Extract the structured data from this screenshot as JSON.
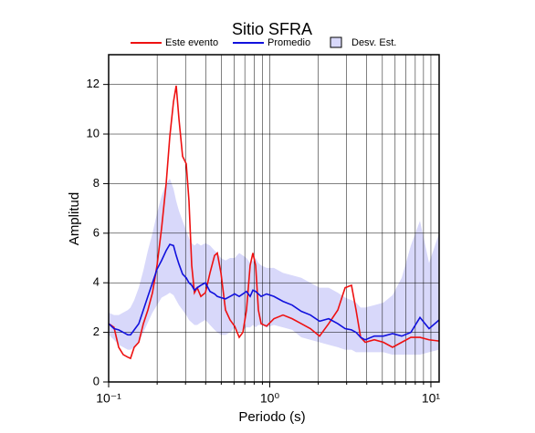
{
  "chart_data": {
    "type": "line",
    "title": "Sitio SFRA",
    "xlabel": "Periodo (s)",
    "ylabel": "Amplitud",
    "xscale": "log",
    "xlim": [
      0.1,
      11.25
    ],
    "ylim": [
      0,
      13.2
    ],
    "xticks": [
      {
        "value": 0.1,
        "label": "10⁻¹"
      },
      {
        "value": 1,
        "label": "10⁰"
      },
      {
        "value": 10,
        "label": "10¹"
      }
    ],
    "xminorticks": [
      0.2,
      0.3,
      0.4,
      0.5,
      0.6,
      0.7,
      0.8,
      0.9,
      2,
      3,
      4,
      5,
      6,
      7,
      8,
      9
    ],
    "yticks": [
      0,
      2,
      4,
      6,
      8,
      10,
      12
    ],
    "grid": true,
    "x": [
      0.1,
      0.108,
      0.1154,
      0.1232,
      0.1315,
      0.1367,
      0.1441,
      0.1538,
      0.1642,
      0.1752,
      0.1871,
      0.1997,
      0.2131,
      0.2275,
      0.2397,
      0.2526,
      0.2626,
      0.2732,
      0.2877,
      0.3031,
      0.3152,
      0.3278,
      0.3409,
      0.3545,
      0.3735,
      0.3988,
      0.4257,
      0.4544,
      0.4725,
      0.4977,
      0.5313,
      0.5671,
      0.6053,
      0.6462,
      0.6807,
      0.7171,
      0.7554,
      0.7858,
      0.8173,
      0.85,
      0.8839,
      0.9554,
      1.0605,
      1.2083,
      1.3768,
      1.5688,
      1.7875,
      2.0367,
      2.3207,
      2.6443,
      2.9349,
      3.2152,
      3.4318,
      3.663,
      3.9097,
      4.4548,
      5.0758,
      5.7834,
      6.5897,
      7.5085,
      8.555,
      9.7432,
      11.25
    ],
    "series": [
      {
        "name": "Este evento",
        "color": "#ee1111",
        "values": [
          2.35,
          2.2,
          1.4,
          1.1,
          1.0,
          0.95,
          1.4,
          1.6,
          2.35,
          2.9,
          3.6,
          4.7,
          6.2,
          8.0,
          9.9,
          11.3,
          11.95,
          10.6,
          9.1,
          8.8,
          7.3,
          4.7,
          3.6,
          3.8,
          3.45,
          3.6,
          4.4,
          5.1,
          5.2,
          4.4,
          2.9,
          2.5,
          2.25,
          1.8,
          2.0,
          2.9,
          4.7,
          5.2,
          4.7,
          2.9,
          2.35,
          2.25,
          2.55,
          2.7,
          2.55,
          2.35,
          2.15,
          1.85,
          2.35,
          2.9,
          3.8,
          3.9,
          2.9,
          1.8,
          1.6,
          1.7,
          1.6,
          1.4,
          1.6,
          1.8,
          1.8,
          1.7,
          1.65
        ]
      },
      {
        "name": "Promedio",
        "color": "#1111dd",
        "values": [
          2.35,
          2.15,
          2.1,
          2.0,
          1.9,
          1.9,
          2.1,
          2.35,
          2.9,
          3.45,
          4.0,
          4.55,
          4.9,
          5.3,
          5.55,
          5.5,
          5.1,
          4.75,
          4.35,
          4.2,
          4.0,
          3.9,
          3.7,
          3.8,
          3.9,
          4.0,
          3.65,
          3.55,
          3.45,
          3.4,
          3.35,
          3.45,
          3.55,
          3.45,
          3.55,
          3.65,
          3.45,
          3.7,
          3.65,
          3.55,
          3.45,
          3.55,
          3.45,
          3.25,
          3.1,
          2.85,
          2.7,
          2.45,
          2.55,
          2.35,
          2.15,
          2.1,
          2.0,
          1.8,
          1.7,
          1.85,
          1.85,
          1.95,
          1.85,
          2.0,
          2.6,
          2.15,
          2.5
        ]
      },
      {
        "name": "Desv. Est.",
        "color": "#d8d8fa",
        "upper": [
          2.8,
          2.7,
          2.7,
          2.8,
          2.9,
          3.0,
          3.3,
          3.8,
          4.5,
          5.3,
          6.0,
          6.8,
          7.5,
          8.0,
          8.2,
          7.8,
          7.3,
          6.9,
          6.5,
          6.1,
          5.8,
          5.6,
          5.5,
          5.6,
          5.5,
          5.6,
          5.5,
          5.3,
          5.2,
          5.0,
          4.9,
          5.0,
          5.0,
          5.2,
          5.1,
          5.0,
          4.8,
          4.9,
          5.0,
          4.8,
          4.7,
          4.6,
          4.6,
          4.4,
          4.3,
          4.2,
          4.0,
          3.8,
          3.8,
          3.6,
          3.4,
          3.3,
          3.2,
          3.0,
          3.0,
          3.1,
          3.2,
          3.5,
          4.2,
          5.5,
          6.5,
          4.8,
          6.0
        ],
        "lower": [
          1.9,
          1.7,
          1.5,
          1.4,
          1.3,
          1.3,
          1.4,
          1.6,
          2.0,
          2.4,
          2.8,
          3.1,
          3.4,
          3.5,
          3.6,
          3.5,
          3.3,
          3.1,
          2.9,
          2.7,
          2.5,
          2.4,
          2.3,
          2.3,
          2.4,
          2.5,
          2.3,
          2.1,
          2.0,
          1.9,
          1.9,
          2.0,
          2.2,
          2.0,
          2.1,
          2.2,
          2.2,
          2.3,
          2.2,
          2.3,
          2.3,
          2.2,
          2.3,
          2.2,
          2.1,
          1.8,
          1.7,
          1.6,
          1.5,
          1.4,
          1.3,
          1.3,
          1.2,
          1.2,
          1.2,
          1.2,
          1.2,
          1.1,
          1.1,
          1.1,
          1.1,
          1.2,
          1.3
        ]
      }
    ]
  }
}
